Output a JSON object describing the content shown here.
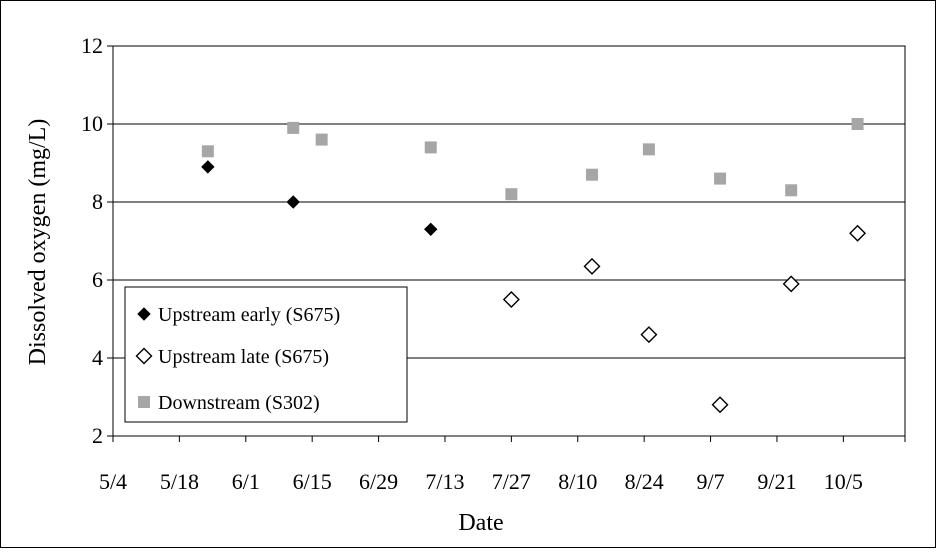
{
  "chart_data": {
    "type": "scatter",
    "title": "",
    "xlabel": "Date",
    "ylabel": "Dissolved oxygen (mg/L)",
    "x_ticks": [
      "5/4",
      "5/18",
      "6/1",
      "6/15",
      "6/29",
      "7/13",
      "7/27",
      "8/10",
      "8/24",
      "9/7",
      "9/21",
      "10/5"
    ],
    "y_ticks": [
      "2",
      "4",
      "6",
      "8",
      "10",
      "12"
    ],
    "ylim": [
      2,
      12
    ],
    "xlim": [
      "5/4",
      "10/18"
    ],
    "grid": "horizontal",
    "legend_position": "bottom-left",
    "series": [
      {
        "name": "Upstream early (S675)",
        "marker": "filled-diamond",
        "color": "#000000",
        "points": [
          {
            "x": "5/24",
            "y": 8.9
          },
          {
            "x": "6/11",
            "y": 8.0
          },
          {
            "x": "7/10",
            "y": 7.3
          }
        ]
      },
      {
        "name": "Upstream late (S675)",
        "marker": "open-diamond",
        "color": "#000000",
        "points": [
          {
            "x": "7/27",
            "y": 5.5
          },
          {
            "x": "8/13",
            "y": 6.35
          },
          {
            "x": "8/25",
            "y": 4.6
          },
          {
            "x": "9/9",
            "y": 2.8
          },
          {
            "x": "9/24",
            "y": 5.9
          },
          {
            "x": "10/8",
            "y": 7.2
          }
        ]
      },
      {
        "name": "Downstream (S302)",
        "marker": "square",
        "color": "#a6a6a6",
        "points": [
          {
            "x": "5/24",
            "y": 9.3
          },
          {
            "x": "6/11",
            "y": 9.9
          },
          {
            "x": "6/17",
            "y": 9.6
          },
          {
            "x": "7/10",
            "y": 9.4
          },
          {
            "x": "7/27",
            "y": 8.2
          },
          {
            "x": "8/13",
            "y": 8.7
          },
          {
            "x": "8/25",
            "y": 9.35
          },
          {
            "x": "9/9",
            "y": 8.6
          },
          {
            "x": "9/24",
            "y": 8.3
          },
          {
            "x": "10/8",
            "y": 10.0
          }
        ]
      }
    ]
  }
}
